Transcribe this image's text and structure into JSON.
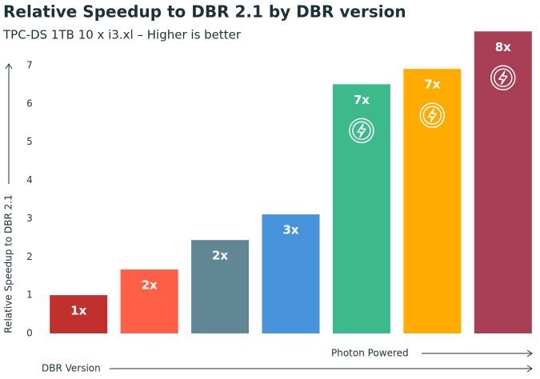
{
  "chart_data": {
    "type": "bar",
    "title": "Relative Speedup to DBR 2.1 by DBR version",
    "subtitle": "TPC-DS 1TB 10 x i3.xl – Higher is better",
    "y_label": "Relative Speedup to DBR 2.1",
    "x_label": "DBR Version",
    "annotation": "Photon Powered",
    "categories": [
      null,
      null,
      null,
      null,
      null,
      null,
      null
    ],
    "values": [
      1.0,
      1.67,
      2.44,
      3.11,
      6.51,
      6.91,
      7.89
    ],
    "value_labels": [
      "1x",
      "2x",
      "2x",
      "3x",
      "7x",
      "7x",
      "8x"
    ],
    "colors": [
      "#c0302c",
      "#ff5f46",
      "#618794",
      "#4894dc",
      "#3dba8c",
      "#ffab00",
      "#a83e55"
    ],
    "ylim": [
      0,
      8
    ],
    "yticks": [
      0,
      1,
      2,
      3,
      4,
      5,
      6,
      7
    ],
    "grid": false
  }
}
